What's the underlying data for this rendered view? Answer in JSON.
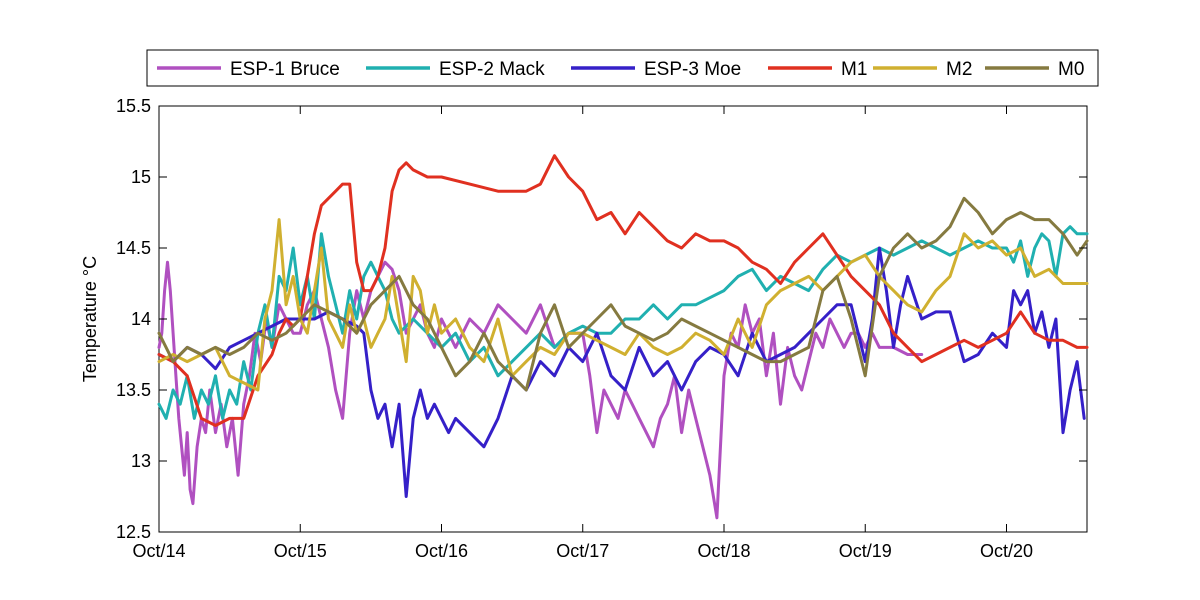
{
  "chart_data": {
    "type": "line",
    "ylabel": "Temperature °C",
    "xlabel": "",
    "ylim": [
      12.5,
      15.5
    ],
    "xlim": [
      0,
      6.57
    ],
    "y_ticks": [
      12.5,
      13,
      13.5,
      14,
      14.5,
      15,
      15.5
    ],
    "y_tick_labels": [
      "12.5",
      "13",
      "13.5",
      "14",
      "14.5",
      "15",
      "15.5"
    ],
    "x_ticks": [
      0,
      1,
      2,
      3,
      4,
      5,
      6
    ],
    "x_tick_labels": [
      "Oct/14",
      "Oct/15",
      "Oct/16",
      "Oct/17",
      "Oct/18",
      "Oct/19",
      "Oct/20"
    ],
    "grid": false,
    "legend_position": "top",
    "series": [
      {
        "name": "ESP-1 Bruce",
        "color": "#b050c0",
        "x": [
          0,
          0.02,
          0.04,
          0.06,
          0.08,
          0.1,
          0.12,
          0.14,
          0.16,
          0.18,
          0.2,
          0.22,
          0.24,
          0.27,
          0.3,
          0.33,
          0.36,
          0.4,
          0.44,
          0.48,
          0.52,
          0.56,
          0.6,
          0.64,
          0.68,
          0.72,
          0.76,
          0.8,
          0.85,
          0.9,
          0.95,
          1.0,
          1.05,
          1.1,
          1.15,
          1.2,
          1.25,
          1.3,
          1.35,
          1.4,
          1.45,
          1.5,
          1.55,
          1.6,
          1.65,
          1.7,
          1.75,
          1.8,
          1.85,
          1.9,
          1.95,
          2.0,
          2.05,
          2.1,
          2.2,
          2.3,
          2.4,
          2.5,
          2.6,
          2.7,
          2.8,
          2.9,
          3.0,
          3.05,
          3.1,
          3.15,
          3.2,
          3.25,
          3.3,
          3.35,
          3.4,
          3.45,
          3.5,
          3.55,
          3.6,
          3.65,
          3.7,
          3.75,
          3.8,
          3.85,
          3.9,
          3.95,
          4.0,
          4.05,
          4.1,
          4.15,
          4.2,
          4.25,
          4.3,
          4.35,
          4.4,
          4.45,
          4.5,
          4.55,
          4.6,
          4.65,
          4.7,
          4.75,
          4.8,
          4.85,
          4.9,
          4.95,
          5.0,
          5.05,
          5.1,
          5.2,
          5.3,
          5.4
        ],
        "values": [
          13.8,
          13.9,
          14.2,
          14.4,
          14.2,
          13.9,
          13.6,
          13.3,
          13.1,
          12.9,
          13.2,
          12.8,
          12.7,
          13.1,
          13.3,
          13.2,
          13.5,
          13.2,
          13.4,
          13.1,
          13.3,
          12.9,
          13.4,
          13.6,
          13.9,
          13.7,
          14.0,
          13.8,
          14.1,
          14.0,
          13.9,
          13.9,
          14.1,
          14.2,
          14.0,
          13.8,
          13.5,
          13.3,
          13.9,
          14.2,
          14.0,
          14.2,
          14.3,
          14.4,
          14.35,
          14.2,
          13.9,
          14.0,
          14.1,
          13.9,
          13.8,
          14.0,
          13.9,
          13.8,
          14.0,
          13.9,
          14.1,
          14.0,
          13.9,
          14.1,
          13.8,
          13.9,
          13.9,
          13.6,
          13.2,
          13.5,
          13.4,
          13.3,
          13.5,
          13.4,
          13.3,
          13.2,
          13.1,
          13.3,
          13.4,
          13.6,
          13.2,
          13.5,
          13.3,
          13.1,
          12.9,
          12.6,
          13.6,
          13.9,
          13.8,
          14.1,
          13.9,
          14.0,
          13.6,
          13.9,
          13.4,
          13.8,
          13.6,
          13.5,
          13.7,
          13.9,
          13.8,
          14.0,
          13.9,
          13.8,
          13.9,
          13.9,
          13.8,
          13.9,
          13.8,
          13.8,
          13.75,
          13.75
        ]
      },
      {
        "name": "ESP-2 Mack",
        "color": "#20b0b0",
        "x": [
          0,
          0.05,
          0.1,
          0.15,
          0.2,
          0.25,
          0.3,
          0.35,
          0.4,
          0.45,
          0.5,
          0.55,
          0.6,
          0.65,
          0.7,
          0.75,
          0.8,
          0.85,
          0.9,
          0.95,
          1.0,
          1.05,
          1.1,
          1.15,
          1.2,
          1.25,
          1.3,
          1.35,
          1.4,
          1.45,
          1.5,
          1.55,
          1.6,
          1.65,
          1.7,
          1.8,
          1.9,
          2.0,
          2.1,
          2.2,
          2.3,
          2.4,
          2.5,
          2.6,
          2.7,
          2.8,
          2.9,
          3.0,
          3.1,
          3.2,
          3.3,
          3.4,
          3.5,
          3.6,
          3.7,
          3.8,
          3.9,
          4.0,
          4.1,
          4.2,
          4.3,
          4.4,
          4.5,
          4.6,
          4.7,
          4.8,
          4.9,
          5.0,
          5.1,
          5.2,
          5.3,
          5.4,
          5.5,
          5.6,
          5.7,
          5.8,
          5.9,
          6.0,
          6.05,
          6.1,
          6.15,
          6.2,
          6.25,
          6.3,
          6.35,
          6.4,
          6.45,
          6.5,
          6.57
        ],
        "values": [
          13.4,
          13.3,
          13.5,
          13.4,
          13.6,
          13.3,
          13.5,
          13.4,
          13.6,
          13.3,
          13.5,
          13.4,
          13.7,
          13.5,
          13.9,
          14.1,
          13.8,
          14.3,
          14.2,
          14.5,
          14.1,
          14.3,
          14.0,
          14.6,
          14.3,
          14.1,
          13.9,
          14.2,
          14.0,
          14.3,
          14.4,
          14.3,
          14.2,
          14.0,
          13.9,
          14.0,
          13.9,
          13.8,
          13.9,
          13.7,
          13.8,
          13.6,
          13.7,
          13.8,
          13.9,
          13.8,
          13.9,
          13.95,
          13.9,
          13.9,
          14.0,
          14.0,
          14.1,
          14.0,
          14.1,
          14.1,
          14.15,
          14.2,
          14.3,
          14.35,
          14.2,
          14.3,
          14.25,
          14.2,
          14.35,
          14.45,
          14.4,
          14.45,
          14.5,
          14.45,
          14.5,
          14.55,
          14.5,
          14.45,
          14.5,
          14.55,
          14.5,
          14.5,
          14.4,
          14.55,
          14.3,
          14.5,
          14.6,
          14.55,
          14.3,
          14.6,
          14.65,
          14.6,
          14.6
        ]
      },
      {
        "name": "ESP-3 Moe",
        "color": "#3520c8",
        "x": [
          0,
          0.1,
          0.2,
          0.3,
          0.4,
          0.5,
          0.6,
          0.7,
          0.8,
          0.9,
          1.0,
          1.1,
          1.2,
          1.3,
          1.4,
          1.45,
          1.5,
          1.55,
          1.6,
          1.65,
          1.7,
          1.75,
          1.8,
          1.85,
          1.9,
          1.95,
          2.0,
          2.05,
          2.1,
          2.2,
          2.3,
          2.4,
          2.5,
          2.6,
          2.7,
          2.8,
          2.9,
          3.0,
          3.1,
          3.2,
          3.3,
          3.4,
          3.5,
          3.6,
          3.7,
          3.8,
          3.9,
          4.0,
          4.1,
          4.2,
          4.3,
          4.4,
          4.5,
          4.6,
          4.7,
          4.8,
          4.9,
          5.0,
          5.05,
          5.1,
          5.15,
          5.2,
          5.25,
          5.3,
          5.4,
          5.5,
          5.6,
          5.7,
          5.8,
          5.9,
          6.0,
          6.05,
          6.1,
          6.15,
          6.2,
          6.25,
          6.3,
          6.35,
          6.4,
          6.45,
          6.5,
          6.55
        ],
        "values": [
          13.75,
          13.7,
          13.8,
          13.75,
          13.65,
          13.8,
          13.85,
          13.9,
          13.95,
          14.0,
          14.0,
          14.0,
          14.05,
          14.0,
          13.95,
          13.9,
          13.5,
          13.3,
          13.4,
          13.1,
          13.4,
          12.75,
          13.3,
          13.5,
          13.3,
          13.4,
          13.3,
          13.2,
          13.3,
          13.2,
          13.1,
          13.3,
          13.6,
          13.5,
          13.7,
          13.6,
          13.8,
          13.7,
          13.9,
          13.6,
          13.5,
          13.8,
          13.6,
          13.7,
          13.5,
          13.7,
          13.8,
          13.75,
          13.6,
          13.9,
          13.7,
          13.75,
          13.8,
          13.9,
          14.0,
          14.1,
          14.1,
          13.7,
          14.0,
          14.5,
          14.2,
          13.8,
          14.1,
          14.3,
          14.0,
          14.05,
          14.05,
          13.7,
          13.75,
          13.9,
          13.8,
          14.2,
          14.1,
          14.2,
          13.9,
          14.05,
          13.8,
          14.0,
          13.2,
          13.5,
          13.7,
          13.3
        ]
      },
      {
        "name": "M1",
        "color": "#e03020",
        "x": [
          0,
          0.1,
          0.2,
          0.3,
          0.4,
          0.5,
          0.6,
          0.7,
          0.8,
          0.85,
          0.9,
          0.95,
          1.0,
          1.05,
          1.1,
          1.15,
          1.2,
          1.25,
          1.3,
          1.35,
          1.4,
          1.45,
          1.5,
          1.55,
          1.6,
          1.65,
          1.7,
          1.75,
          1.8,
          1.9,
          2.0,
          2.2,
          2.4,
          2.6,
          2.7,
          2.8,
          2.9,
          3.0,
          3.1,
          3.2,
          3.3,
          3.4,
          3.5,
          3.6,
          3.7,
          3.8,
          3.9,
          4.0,
          4.1,
          4.2,
          4.3,
          4.4,
          4.5,
          4.6,
          4.7,
          4.8,
          4.9,
          5.0,
          5.1,
          5.2,
          5.3,
          5.4,
          5.5,
          5.6,
          5.7,
          5.8,
          5.9,
          6.0,
          6.1,
          6.2,
          6.3,
          6.4,
          6.5,
          6.57
        ],
        "values": [
          13.75,
          13.7,
          13.6,
          13.3,
          13.25,
          13.3,
          13.3,
          13.6,
          13.75,
          13.9,
          14.0,
          13.95,
          14.0,
          14.3,
          14.6,
          14.8,
          14.85,
          14.9,
          14.95,
          14.95,
          14.4,
          14.2,
          14.2,
          14.3,
          14.5,
          14.9,
          15.05,
          15.1,
          15.05,
          15.0,
          15.0,
          14.95,
          14.9,
          14.9,
          14.95,
          15.15,
          15.0,
          14.9,
          14.7,
          14.75,
          14.6,
          14.75,
          14.65,
          14.55,
          14.5,
          14.6,
          14.55,
          14.55,
          14.5,
          14.4,
          14.35,
          14.25,
          14.4,
          14.5,
          14.6,
          14.45,
          14.3,
          14.2,
          14.1,
          13.9,
          13.8,
          13.7,
          13.75,
          13.8,
          13.85,
          13.8,
          13.85,
          13.9,
          14.05,
          13.9,
          13.85,
          13.85,
          13.8,
          13.8
        ]
      },
      {
        "name": "M2",
        "color": "#d0b030",
        "x": [
          0,
          0.1,
          0.2,
          0.3,
          0.4,
          0.5,
          0.6,
          0.7,
          0.75,
          0.8,
          0.85,
          0.9,
          0.95,
          1.0,
          1.05,
          1.1,
          1.15,
          1.2,
          1.25,
          1.3,
          1.35,
          1.4,
          1.45,
          1.5,
          1.55,
          1.6,
          1.65,
          1.7,
          1.75,
          1.8,
          1.85,
          1.9,
          1.95,
          2.0,
          2.1,
          2.2,
          2.3,
          2.4,
          2.5,
          2.6,
          2.7,
          2.8,
          2.9,
          3.0,
          3.1,
          3.2,
          3.3,
          3.4,
          3.5,
          3.6,
          3.7,
          3.8,
          3.9,
          4.0,
          4.1,
          4.2,
          4.3,
          4.4,
          4.5,
          4.6,
          4.7,
          4.8,
          4.9,
          5.0,
          5.1,
          5.2,
          5.3,
          5.4,
          5.5,
          5.6,
          5.7,
          5.8,
          5.9,
          6.0,
          6.1,
          6.2,
          6.3,
          6.4,
          6.5,
          6.57
        ],
        "values": [
          13.7,
          13.75,
          13.7,
          13.75,
          13.8,
          13.6,
          13.55,
          13.5,
          14.0,
          14.2,
          14.7,
          14.1,
          14.3,
          14.0,
          13.9,
          14.2,
          14.5,
          14.0,
          13.9,
          13.8,
          14.1,
          13.9,
          14.0,
          13.8,
          13.9,
          14.0,
          14.3,
          14.0,
          13.7,
          14.3,
          14.2,
          13.9,
          14.1,
          13.9,
          14.0,
          13.8,
          13.7,
          14.0,
          13.6,
          13.7,
          13.8,
          13.75,
          13.9,
          13.9,
          13.85,
          13.8,
          13.75,
          13.9,
          13.8,
          13.75,
          13.8,
          13.9,
          13.85,
          13.75,
          14.0,
          13.8,
          14.1,
          14.2,
          14.25,
          14.3,
          14.2,
          14.3,
          14.4,
          14.45,
          14.3,
          14.2,
          14.1,
          14.05,
          14.2,
          14.3,
          14.6,
          14.5,
          14.55,
          14.45,
          14.5,
          14.3,
          14.35,
          14.25,
          14.25,
          14.25
        ]
      },
      {
        "name": "M0",
        "color": "#857a40",
        "x": [
          0,
          0.1,
          0.2,
          0.3,
          0.4,
          0.5,
          0.6,
          0.7,
          0.8,
          0.9,
          1.0,
          1.1,
          1.2,
          1.3,
          1.4,
          1.5,
          1.6,
          1.7,
          1.8,
          1.9,
          2.0,
          2.1,
          2.2,
          2.3,
          2.4,
          2.5,
          2.6,
          2.7,
          2.8,
          2.9,
          3.0,
          3.1,
          3.2,
          3.3,
          3.4,
          3.5,
          3.6,
          3.7,
          3.8,
          3.9,
          4.0,
          4.1,
          4.2,
          4.3,
          4.4,
          4.5,
          4.6,
          4.7,
          4.8,
          4.9,
          5.0,
          5.1,
          5.2,
          5.3,
          5.4,
          5.5,
          5.6,
          5.7,
          5.8,
          5.9,
          6.0,
          6.1,
          6.2,
          6.3,
          6.4,
          6.5,
          6.57
        ],
        "values": [
          13.9,
          13.7,
          13.8,
          13.75,
          13.8,
          13.75,
          13.8,
          13.9,
          13.85,
          13.9,
          14.0,
          14.1,
          14.05,
          14.0,
          13.9,
          14.1,
          14.2,
          14.3,
          14.1,
          14.0,
          13.8,
          13.6,
          13.7,
          13.9,
          13.7,
          13.6,
          13.5,
          13.9,
          14.1,
          13.8,
          13.9,
          14.0,
          14.1,
          13.95,
          13.9,
          13.85,
          13.9,
          14.0,
          13.95,
          13.9,
          13.85,
          13.8,
          13.75,
          13.7,
          13.7,
          13.75,
          13.8,
          14.2,
          14.3,
          14.0,
          13.6,
          14.3,
          14.5,
          14.6,
          14.5,
          14.55,
          14.65,
          14.85,
          14.75,
          14.6,
          14.7,
          14.75,
          14.7,
          14.7,
          14.6,
          14.45,
          14.55
        ]
      }
    ]
  }
}
